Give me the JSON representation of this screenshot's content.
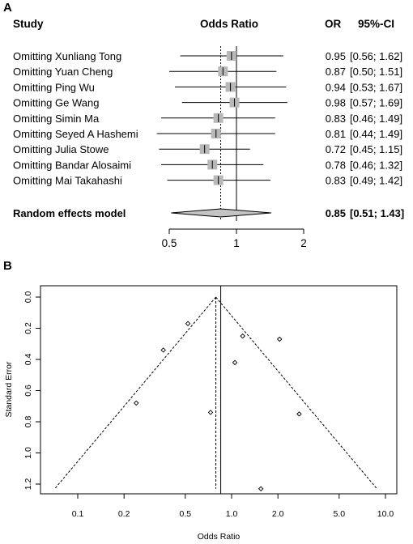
{
  "panels": {
    "a_letter": "A",
    "b_letter": "B"
  },
  "colors": {
    "square": "#b8b8b8",
    "diamond": "#c4c4c4",
    "line": "#000000"
  },
  "chart_data": [
    {
      "type": "forest",
      "headers": {
        "study": "Study",
        "effect": "Odds Ratio",
        "or": "OR",
        "ci": "95%-CI"
      },
      "scale": "log",
      "xlim": [
        0.5,
        2
      ],
      "xticks": [
        "0.5",
        "1",
        "2"
      ],
      "reference_line": 1,
      "summary_line": 0.85,
      "studies": [
        {
          "label": "Omitting Xunliang Tong",
          "or": 0.95,
          "lo": 0.56,
          "hi": 1.62,
          "or_text": "0.95",
          "ci_text": "[0.56; 1.62]"
        },
        {
          "label": "Omitting Yuan Cheng",
          "or": 0.87,
          "lo": 0.5,
          "hi": 1.51,
          "or_text": "0.87",
          "ci_text": "[0.50; 1.51]"
        },
        {
          "label": "Omitting Ping Wu",
          "or": 0.94,
          "lo": 0.53,
          "hi": 1.67,
          "or_text": "0.94",
          "ci_text": "[0.53; 1.67]"
        },
        {
          "label": "Omitting Ge Wang",
          "or": 0.98,
          "lo": 0.57,
          "hi": 1.69,
          "or_text": "0.98",
          "ci_text": "[0.57; 1.69]"
        },
        {
          "label": "Omitting Simin Ma",
          "or": 0.83,
          "lo": 0.46,
          "hi": 1.49,
          "or_text": "0.83",
          "ci_text": "[0.46; 1.49]"
        },
        {
          "label": "Omitting Seyed A Hashemi",
          "or": 0.81,
          "lo": 0.44,
          "hi": 1.49,
          "or_text": "0.81",
          "ci_text": "[0.44; 1.49]"
        },
        {
          "label": "Omitting Julia Stowe",
          "or": 0.72,
          "lo": 0.45,
          "hi": 1.15,
          "or_text": "0.72",
          "ci_text": "[0.45; 1.15]"
        },
        {
          "label": "Omitting Bandar Alosaimi",
          "or": 0.78,
          "lo": 0.46,
          "hi": 1.32,
          "or_text": "0.78",
          "ci_text": "[0.46; 1.32]"
        },
        {
          "label": "Omitting Mai Takahashi",
          "or": 0.83,
          "lo": 0.49,
          "hi": 1.42,
          "or_text": "0.83",
          "ci_text": "[0.49; 1.42]"
        }
      ],
      "summary": {
        "label": "Random effects model",
        "or": 0.85,
        "lo": 0.51,
        "hi": 1.43,
        "or_text": "0.85",
        "ci_text": "[0.51; 1.43]"
      }
    },
    {
      "type": "scatter",
      "subtype": "funnel",
      "xlabel": "Odds Ratio",
      "ylabel": "Standard Error",
      "xscale": "log",
      "xlim": [
        0.06,
        10
      ],
      "ylim": [
        1.24,
        0
      ],
      "xticks": [
        "0.1",
        "0.2",
        "0.5",
        "1.0",
        "2.0",
        "5.0",
        "10.0"
      ],
      "yticks": [
        "0.0",
        "0.2",
        "0.4",
        "0.6",
        "0.8",
        "1.0",
        "1.2"
      ],
      "pooled_estimate": 0.85,
      "fixed_line": 0.79,
      "points": [
        {
          "x": 0.52,
          "y": 0.17
        },
        {
          "x": 0.36,
          "y": 0.34
        },
        {
          "x": 0.24,
          "y": 0.68
        },
        {
          "x": 0.73,
          "y": 0.74
        },
        {
          "x": 1.18,
          "y": 0.25
        },
        {
          "x": 1.05,
          "y": 0.42
        },
        {
          "x": 2.05,
          "y": 0.27
        },
        {
          "x": 2.75,
          "y": 0.75
        },
        {
          "x": 1.55,
          "y": 1.23
        }
      ]
    }
  ]
}
